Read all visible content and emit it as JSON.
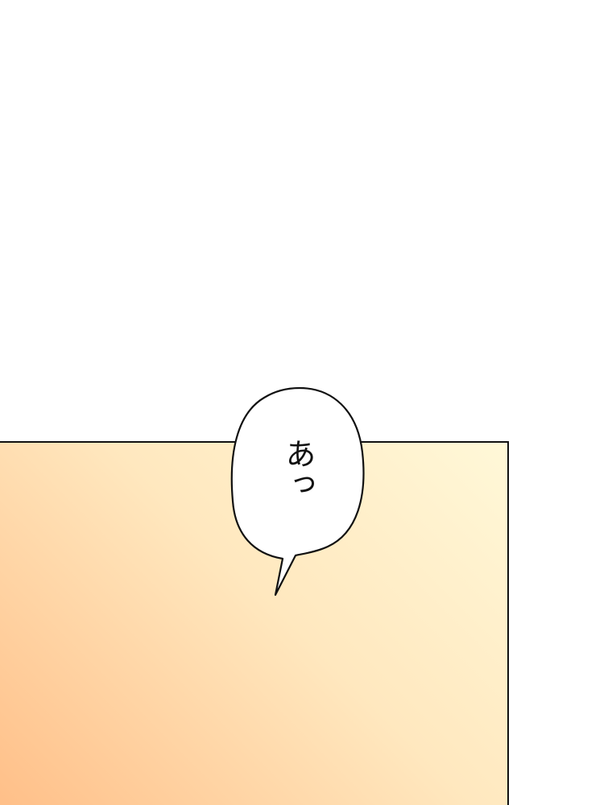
{
  "speech_bubble": {
    "text": "あっ"
  },
  "colors": {
    "background": "#ffffff",
    "panel_gradient_start": "#fff8d8",
    "panel_gradient_end": "#ffbf88",
    "outline": "#111111"
  }
}
